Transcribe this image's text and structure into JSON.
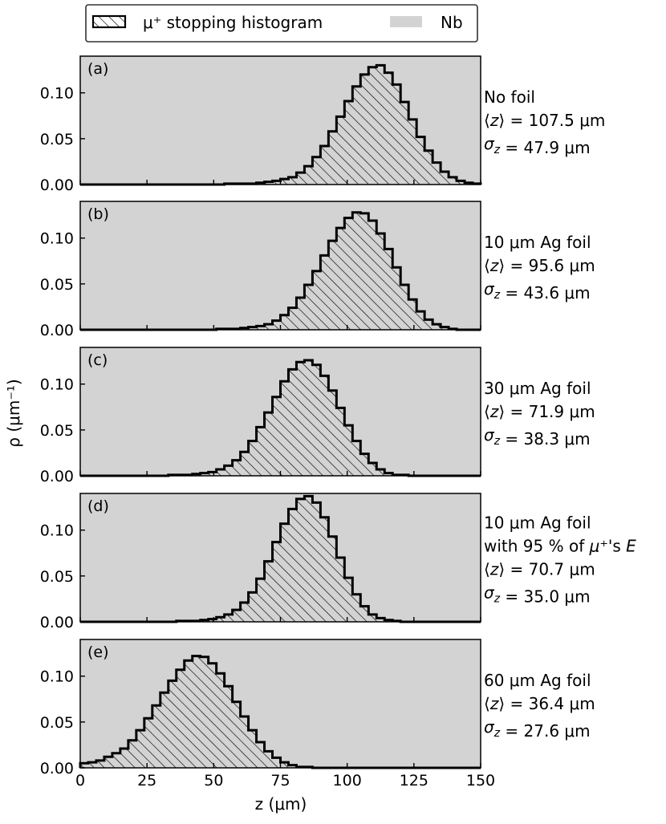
{
  "legend": {
    "hist_label": "μ⁺ stopping histogram",
    "nb_label": "Nb"
  },
  "axes": {
    "xlabel": "z (μm)",
    "ylabel": "ρ (μm⁻¹)",
    "x_ticks": [
      "0",
      "25",
      "50",
      "75",
      "100",
      "125",
      "150"
    ],
    "y_ticks": [
      "0.00",
      "0.05",
      "0.10"
    ]
  },
  "chart_data": [
    {
      "type": "bar",
      "panel": "(a)",
      "xlim": [
        0,
        150
      ],
      "ylim": [
        0,
        0.14
      ],
      "annotation": [
        "No foil",
        "⟨z⟩ = 107.5 μm",
        "σ_z = 47.9 μm"
      ],
      "series": [
        {
          "name": "μ⁺ stopping histogram",
          "bin_width": 3,
          "bin_start": 0,
          "values": [
            0.0,
            0.0,
            0.0,
            0.0,
            0.0,
            0.0,
            0.0,
            0.0,
            0.0,
            0.0,
            0.0,
            0.0,
            0.0,
            0.0,
            0.0,
            0.0,
            0.0,
            0.0,
            0.001,
            0.001,
            0.001,
            0.001,
            0.002,
            0.003,
            0.004,
            0.006,
            0.008,
            0.013,
            0.02,
            0.03,
            0.042,
            0.058,
            0.074,
            0.091,
            0.107,
            0.12,
            0.128,
            0.13,
            0.122,
            0.109,
            0.09,
            0.071,
            0.052,
            0.037,
            0.024,
            0.014,
            0.008,
            0.004,
            0.002,
            0.001
          ]
        }
      ]
    },
    {
      "type": "bar",
      "panel": "(b)",
      "xlim": [
        0,
        150
      ],
      "ylim": [
        0,
        0.14
      ],
      "annotation": [
        "10 μm Ag foil",
        "⟨z⟩ = 95.6 μm",
        "σ_z = 43.6 μm"
      ],
      "series": [
        {
          "name": "μ⁺ stopping histogram",
          "bin_width": 3,
          "bin_start": 0,
          "values": [
            0.0,
            0.0,
            0.0,
            0.0,
            0.0,
            0.0,
            0.0,
            0.0,
            0.0,
            0.0,
            0.0,
            0.0,
            0.0,
            0.0,
            0.0,
            0.0,
            0.0,
            0.001,
            0.001,
            0.001,
            0.002,
            0.003,
            0.004,
            0.006,
            0.01,
            0.016,
            0.024,
            0.035,
            0.049,
            0.064,
            0.081,
            0.097,
            0.111,
            0.122,
            0.128,
            0.127,
            0.119,
            0.105,
            0.088,
            0.068,
            0.049,
            0.033,
            0.02,
            0.011,
            0.006,
            0.003,
            0.001,
            0.0,
            0.0,
            0.0
          ]
        }
      ]
    },
    {
      "type": "bar",
      "panel": "(c)",
      "xlim": [
        0,
        150
      ],
      "ylim": [
        0,
        0.14
      ],
      "annotation": [
        "30 μm Ag foil",
        "⟨z⟩ = 71.9 μm",
        "σ_z = 38.3 μm"
      ],
      "series": [
        {
          "name": "μ⁺ stopping histogram",
          "bin_width": 3,
          "bin_start": 0,
          "values": [
            0.0,
            0.0,
            0.0,
            0.0,
            0.0,
            0.0,
            0.0,
            0.0,
            0.0,
            0.0,
            0.0,
            0.001,
            0.001,
            0.001,
            0.002,
            0.003,
            0.004,
            0.007,
            0.011,
            0.017,
            0.026,
            0.038,
            0.053,
            0.069,
            0.086,
            0.103,
            0.116,
            0.124,
            0.126,
            0.121,
            0.109,
            0.093,
            0.074,
            0.055,
            0.038,
            0.024,
            0.014,
            0.007,
            0.003,
            0.001,
            0.001,
            0.0,
            0.0,
            0.0,
            0.0,
            0.0,
            0.0,
            0.0,
            0.0,
            0.0
          ]
        }
      ]
    },
    {
      "type": "bar",
      "panel": "(d)",
      "xlim": [
        0,
        150
      ],
      "ylim": [
        0,
        0.14
      ],
      "annotation": [
        "10 μm Ag foil",
        "with 95 % of μ⁺'s E",
        "⟨z⟩ = 70.7 μm",
        "σ_z = 35.0 μm"
      ],
      "series": [
        {
          "name": "μ⁺ stopping histogram",
          "bin_width": 3,
          "bin_start": 0,
          "values": [
            0.0,
            0.0,
            0.0,
            0.0,
            0.0,
            0.0,
            0.0,
            0.0,
            0.0,
            0.0,
            0.0,
            0.0,
            0.001,
            0.001,
            0.001,
            0.002,
            0.003,
            0.005,
            0.008,
            0.013,
            0.021,
            0.032,
            0.047,
            0.066,
            0.087,
            0.107,
            0.123,
            0.134,
            0.137,
            0.13,
            0.114,
            0.093,
            0.07,
            0.048,
            0.03,
            0.017,
            0.008,
            0.004,
            0.002,
            0.001,
            0.0,
            0.0,
            0.0,
            0.0,
            0.0,
            0.0,
            0.0,
            0.0,
            0.0,
            0.0
          ]
        }
      ]
    },
    {
      "type": "bar",
      "panel": "(e)",
      "xlim": [
        0,
        150
      ],
      "ylim": [
        0,
        0.14
      ],
      "annotation": [
        "60 μm Ag foil",
        "⟨z⟩ = 36.4 μm",
        "σ_z = 27.6 μm"
      ],
      "series": [
        {
          "name": "μ⁺ stopping histogram",
          "bin_width": 3,
          "bin_start": 0,
          "values": [
            0.005,
            0.006,
            0.008,
            0.012,
            0.016,
            0.021,
            0.03,
            0.041,
            0.054,
            0.068,
            0.082,
            0.095,
            0.107,
            0.117,
            0.122,
            0.121,
            0.114,
            0.103,
            0.089,
            0.072,
            0.056,
            0.041,
            0.028,
            0.018,
            0.011,
            0.006,
            0.003,
            0.001,
            0.001,
            0.0,
            0.0,
            0.0,
            0.0,
            0.0,
            0.0,
            0.0,
            0.0,
            0.0,
            0.0,
            0.0,
            0.0,
            0.0,
            0.0,
            0.0,
            0.0,
            0.0,
            0.0,
            0.0,
            0.0,
            0.0
          ]
        }
      ]
    }
  ],
  "colors": {
    "nb_fill": "#d3d3d3",
    "hist_edge": "#000000",
    "hatch": "#000000"
  }
}
